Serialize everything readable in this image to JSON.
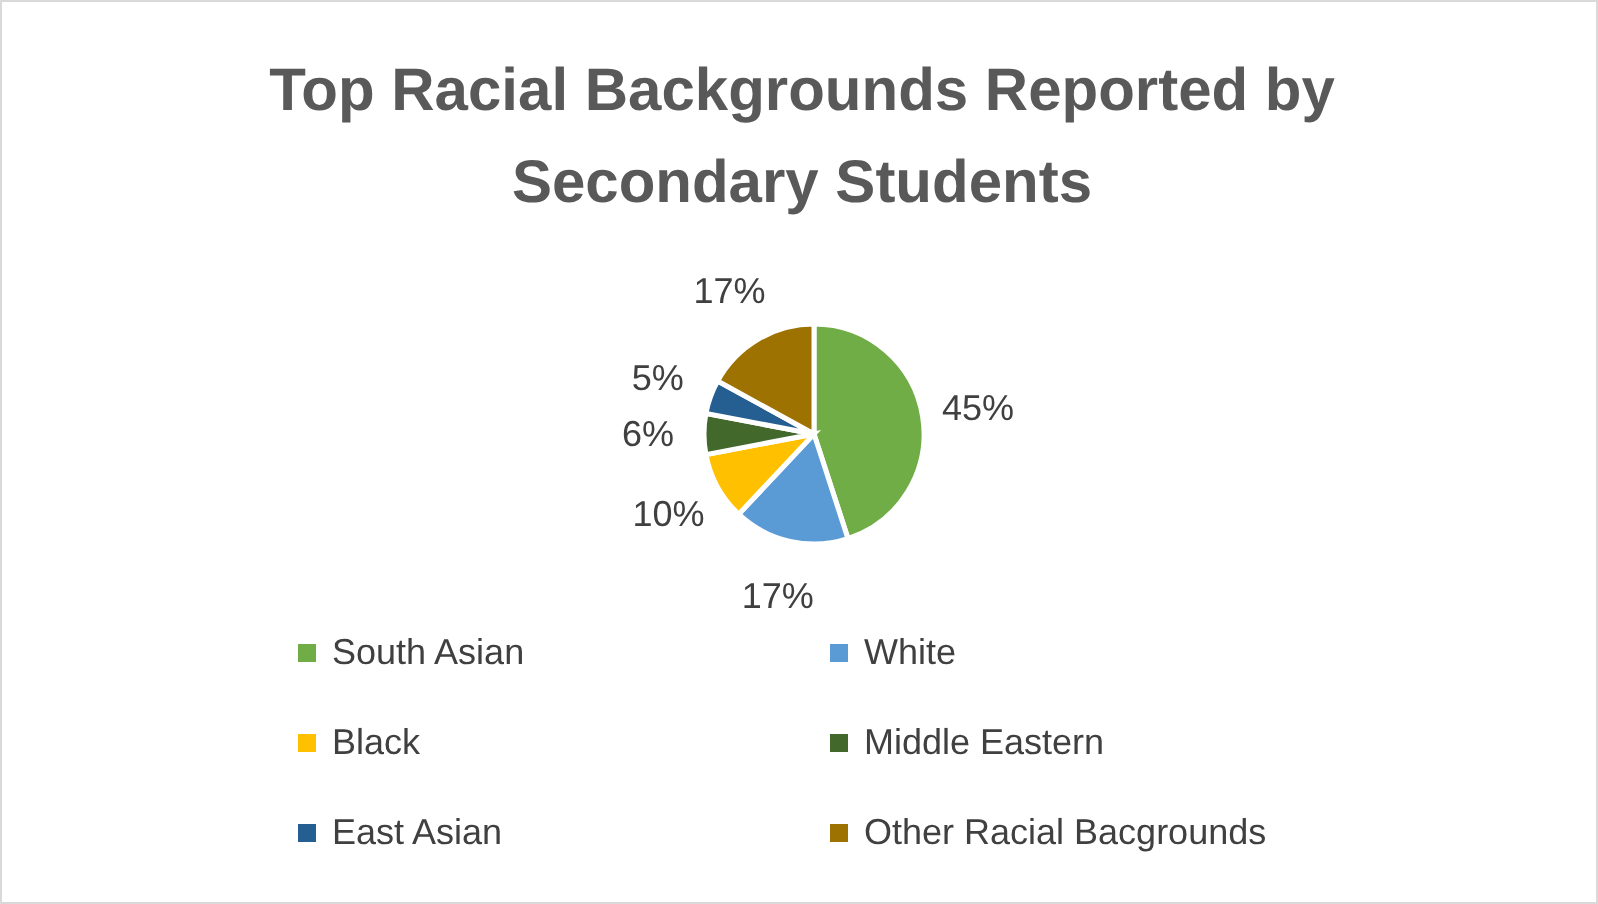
{
  "chart_data": {
    "type": "pie",
    "title": "Top Racial Backgrounds Reported by Secondary Students",
    "categories": [
      "South Asian",
      "White",
      "Black",
      "Middle Eastern",
      "East Asian",
      "Other Racial Bacgrounds"
    ],
    "values": [
      45,
      17,
      10,
      6,
      5,
      17
    ],
    "value_labels": [
      "45%",
      "17%",
      "10%",
      "6%",
      "5%",
      "17%"
    ],
    "colors": [
      "#70ad47",
      "#5b9bd5",
      "#ffc000",
      "#43682b",
      "#255e91",
      "#9e7200"
    ],
    "legend": "bottom"
  }
}
